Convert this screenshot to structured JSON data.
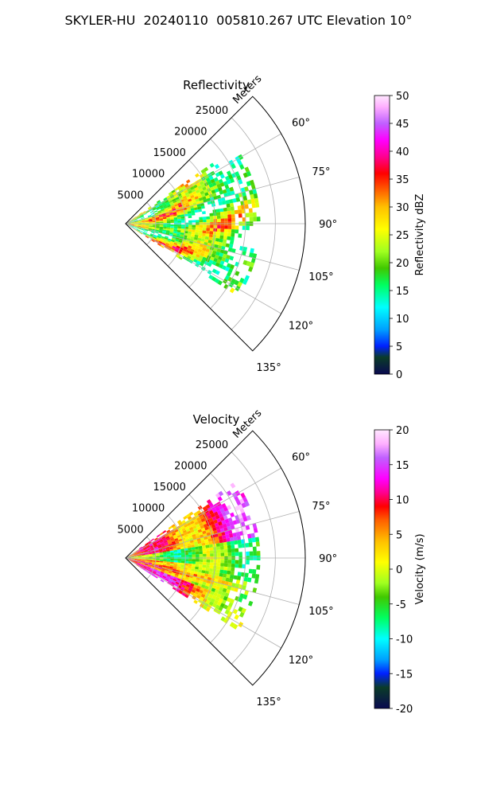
{
  "figure": {
    "title": "SKYLER-HU  20240110  005810.267 UTC Elevation 10°"
  },
  "chart_data": [
    {
      "type": "heatmap",
      "projection": "polar-sector",
      "title": "Reflectivity",
      "radial_label": "Meters",
      "radial_ticks": [
        5000,
        10000,
        15000,
        20000,
        25000
      ],
      "r_max": 30000,
      "data_r_max": 22000,
      "azimuth_range_deg": [
        45,
        135
      ],
      "data_azimuth_range_deg": [
        55,
        122
      ],
      "azimuth_ticks": [
        "60°",
        "75°",
        "90°",
        "105°",
        "120°",
        "135°"
      ],
      "azimuth_tick_values": [
        60,
        75,
        90,
        105,
        120,
        135
      ],
      "colorbar": {
        "label": "Reflectivity dBZ",
        "range": [
          0,
          50
        ],
        "ticks": [
          0,
          5,
          10,
          15,
          20,
          25,
          30,
          35,
          40,
          45,
          50
        ],
        "stops": [
          {
            "v": 0,
            "c": "#0a0a50"
          },
          {
            "v": 3,
            "c": "#0a3c28"
          },
          {
            "v": 5,
            "c": "#0020ff"
          },
          {
            "v": 8,
            "c": "#00a0ff"
          },
          {
            "v": 12,
            "c": "#00ffff"
          },
          {
            "v": 16,
            "c": "#00ff60"
          },
          {
            "v": 19,
            "c": "#40c800"
          },
          {
            "v": 22,
            "c": "#a0ff20"
          },
          {
            "v": 26,
            "c": "#ffff00"
          },
          {
            "v": 30,
            "c": "#ffc000"
          },
          {
            "v": 33,
            "c": "#ff6000"
          },
          {
            "v": 36,
            "c": "#ff0000"
          },
          {
            "v": 39,
            "c": "#ff0090"
          },
          {
            "v": 42,
            "c": "#ff00ff"
          },
          {
            "v": 45,
            "c": "#c060ff"
          },
          {
            "v": 48,
            "c": "#ffb0ff"
          },
          {
            "v": 50,
            "c": "#ffe8ff"
          }
        ]
      }
    },
    {
      "type": "heatmap",
      "projection": "polar-sector",
      "title": "Velocity",
      "radial_label": "Meters",
      "radial_ticks": [
        5000,
        10000,
        15000,
        20000,
        25000
      ],
      "r_max": 30000,
      "data_r_max": 22000,
      "azimuth_range_deg": [
        45,
        135
      ],
      "data_azimuth_range_deg": [
        55,
        122
      ],
      "azimuth_ticks": [
        "60°",
        "75°",
        "90°",
        "105°",
        "120°",
        "135°"
      ],
      "azimuth_tick_values": [
        60,
        75,
        90,
        105,
        120,
        135
      ],
      "colorbar": {
        "label": "Velocity (m/s)",
        "range": [
          -20,
          20
        ],
        "ticks": [
          -20,
          -15,
          -10,
          -5,
          0,
          5,
          10,
          15,
          20
        ],
        "stops": [
          {
            "v": -20,
            "c": "#0a0a50"
          },
          {
            "v": -17,
            "c": "#0a3c28"
          },
          {
            "v": -15,
            "c": "#0020ff"
          },
          {
            "v": -13,
            "c": "#00a0ff"
          },
          {
            "v": -10,
            "c": "#00ffff"
          },
          {
            "v": -7,
            "c": "#00ff60"
          },
          {
            "v": -4,
            "c": "#40c800"
          },
          {
            "v": -2,
            "c": "#a0ff20"
          },
          {
            "v": 1,
            "c": "#ffff00"
          },
          {
            "v": 4,
            "c": "#ffc000"
          },
          {
            "v": 7,
            "c": "#ff6000"
          },
          {
            "v": 9,
            "c": "#ff0000"
          },
          {
            "v": 11,
            "c": "#ff0090"
          },
          {
            "v": 13,
            "c": "#ff00ff"
          },
          {
            "v": 16,
            "c": "#c060ff"
          },
          {
            "v": 18,
            "c": "#ffb0ff"
          },
          {
            "v": 20,
            "c": "#ffe8ff"
          }
        ]
      }
    }
  ]
}
